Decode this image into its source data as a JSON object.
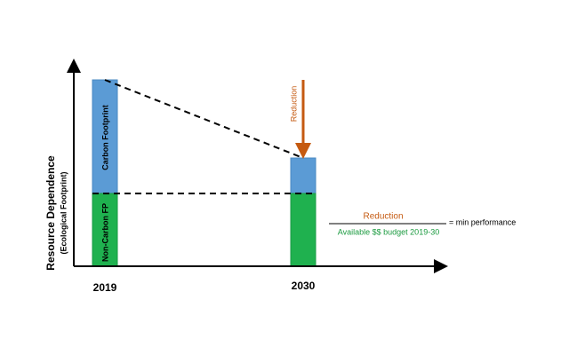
{
  "axis": {
    "y_label": "Resource Dependence",
    "y_sublabel": "(Ecological Footprint)"
  },
  "bars": [
    {
      "year": "2019",
      "top_label": "Carbon Footprint",
      "bottom_label": "Non-Carbon FP"
    },
    {
      "year": "2030"
    }
  ],
  "arrow_label": "Reduction",
  "formula": {
    "numerator": "Reduction",
    "denominator": "Available $$ budget 2019-30",
    "result": "= min performance"
  }
}
